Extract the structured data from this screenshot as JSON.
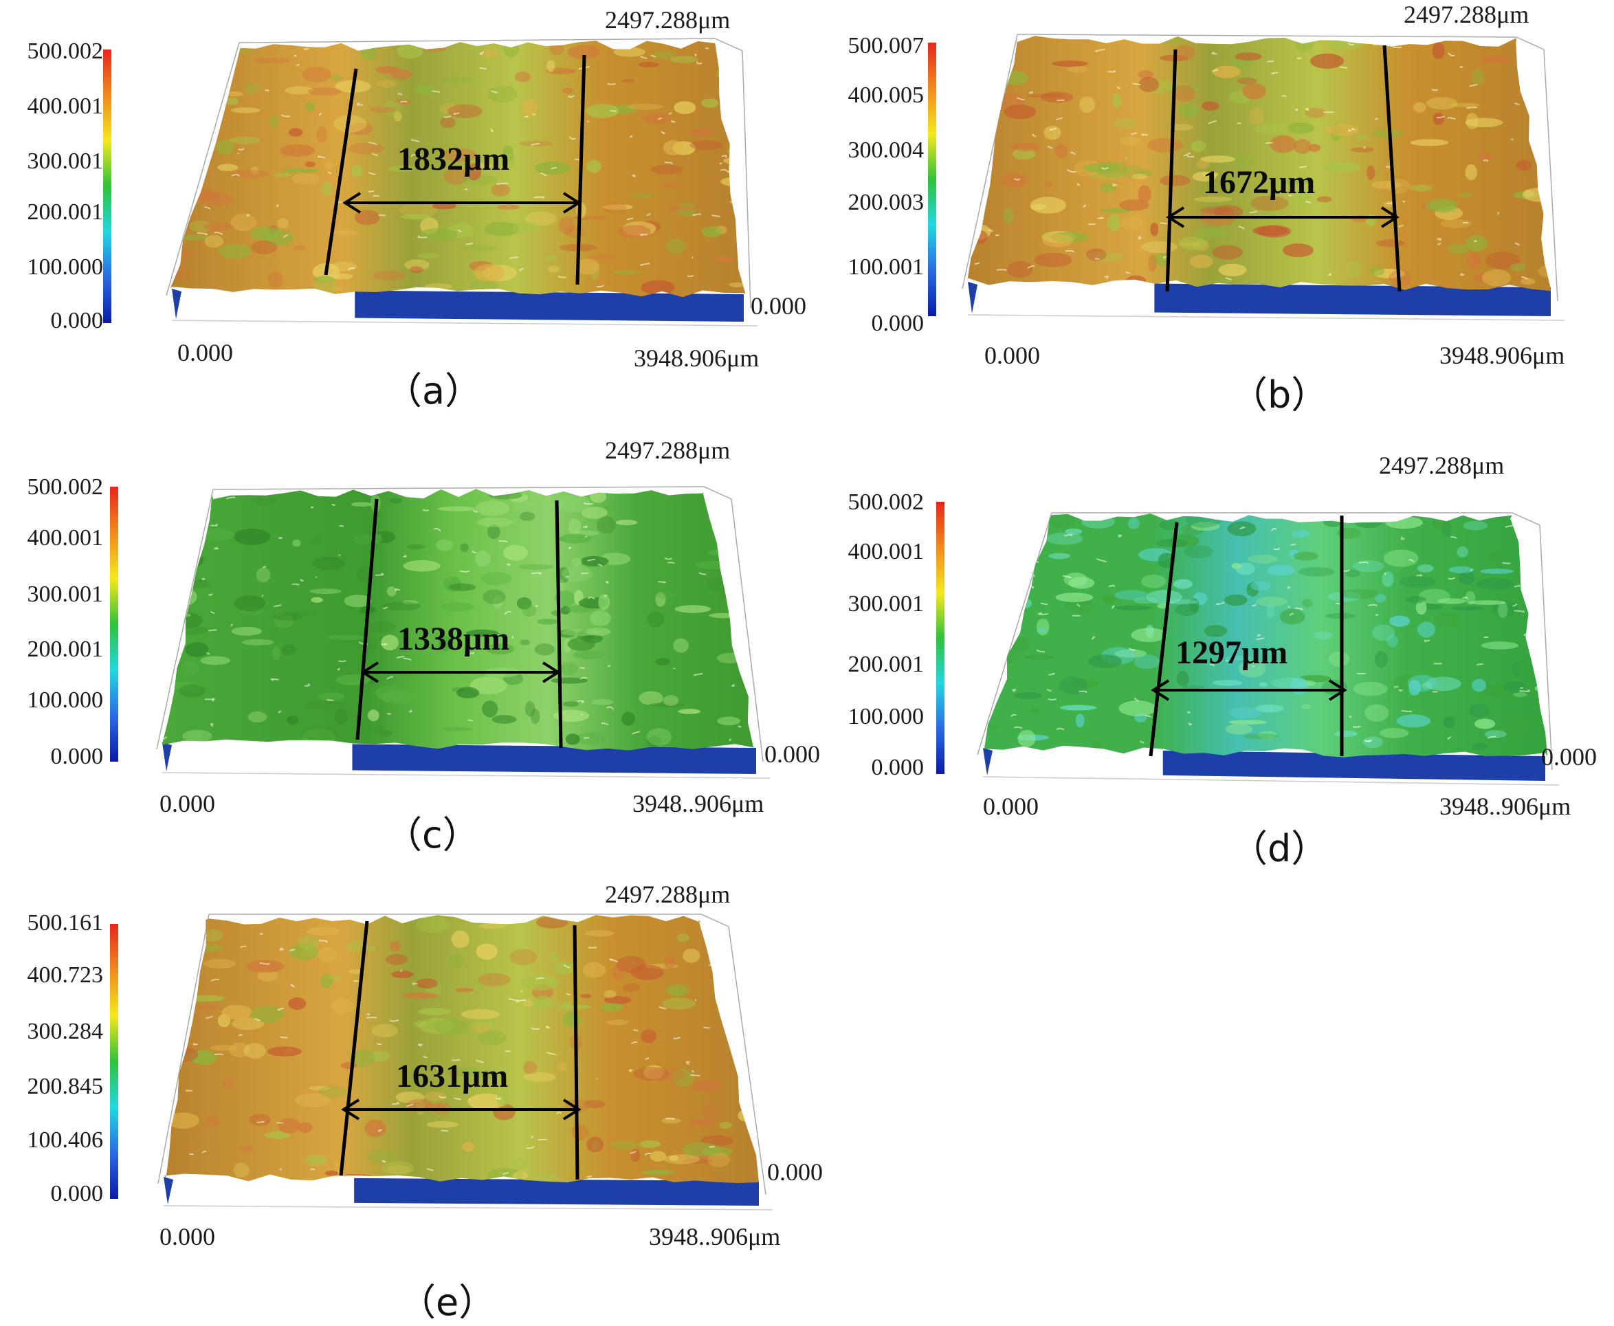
{
  "panels": [
    {
      "id": "a",
      "caption": "（a）",
      "colorbar_ticks": [
        "500.002",
        "400.001",
        "300.001",
        "200.001",
        "100.000",
        "0.000"
      ],
      "y_max_label": "2497.288μm",
      "x_min_label": "0.000",
      "x_max_label": "3948.906μm",
      "z_min_label": "0.000",
      "measurement": "1832μm",
      "scheme": "orange"
    },
    {
      "id": "b",
      "caption": "（b）",
      "colorbar_ticks": [
        "500.007",
        "400.005",
        "300.004",
        "200.003",
        "100.001",
        "0.000"
      ],
      "y_max_label": "2497.288μm",
      "x_min_label": "0.000",
      "x_max_label": "3948.906μm",
      "z_min_label": "",
      "measurement": "1672μm",
      "scheme": "orange"
    },
    {
      "id": "c",
      "caption": "（c）",
      "colorbar_ticks": [
        "500.002",
        "400.001",
        "300.001",
        "200.001",
        "100.000",
        "0.000"
      ],
      "y_max_label": "2497.288μm",
      "x_min_label": "0.000",
      "x_max_label": "3948..906μm",
      "z_min_label": "0.000",
      "measurement": "1338μm",
      "scheme": "green"
    },
    {
      "id": "d",
      "caption": "（d）",
      "colorbar_ticks": [
        "500.002",
        "400.001",
        "300.001",
        "200.001",
        "100.000",
        "0.000"
      ],
      "y_max_label": "2497.288μm",
      "x_min_label": "0.000",
      "x_max_label": "3948..906μm",
      "z_min_label": "0.000",
      "measurement": "1297μm",
      "scheme": "cyan"
    },
    {
      "id": "e",
      "caption": "（e）",
      "colorbar_ticks": [
        "500.161",
        "400.723",
        "300.284",
        "200.845",
        "100.406",
        "0.000"
      ],
      "y_max_label": "2497.288μm",
      "x_min_label": "0.000",
      "x_max_label": "3948..906μm",
      "z_min_label": "0.000",
      "measurement": "1631μm",
      "scheme": "orange"
    }
  ],
  "colors": {
    "colorbar_stops": [
      "#e8261c",
      "#f08a1c",
      "#f4e81c",
      "#2ec23a",
      "#22d8e0",
      "#2a6ae6",
      "#0a1aa8"
    ],
    "surface_orange": [
      "#b8822e",
      "#d9a640",
      "#c8902e",
      "#9aa23a",
      "#c96a3a"
    ],
    "surface_green": [
      "#4aa83a",
      "#6cc24a",
      "#3f9a30",
      "#8ed26a"
    ],
    "surface_cyan": [
      "#3fb04a",
      "#5fcf7a",
      "#46c0b0",
      "#35a33e"
    ],
    "base_blue": "#1e3fa8"
  }
}
